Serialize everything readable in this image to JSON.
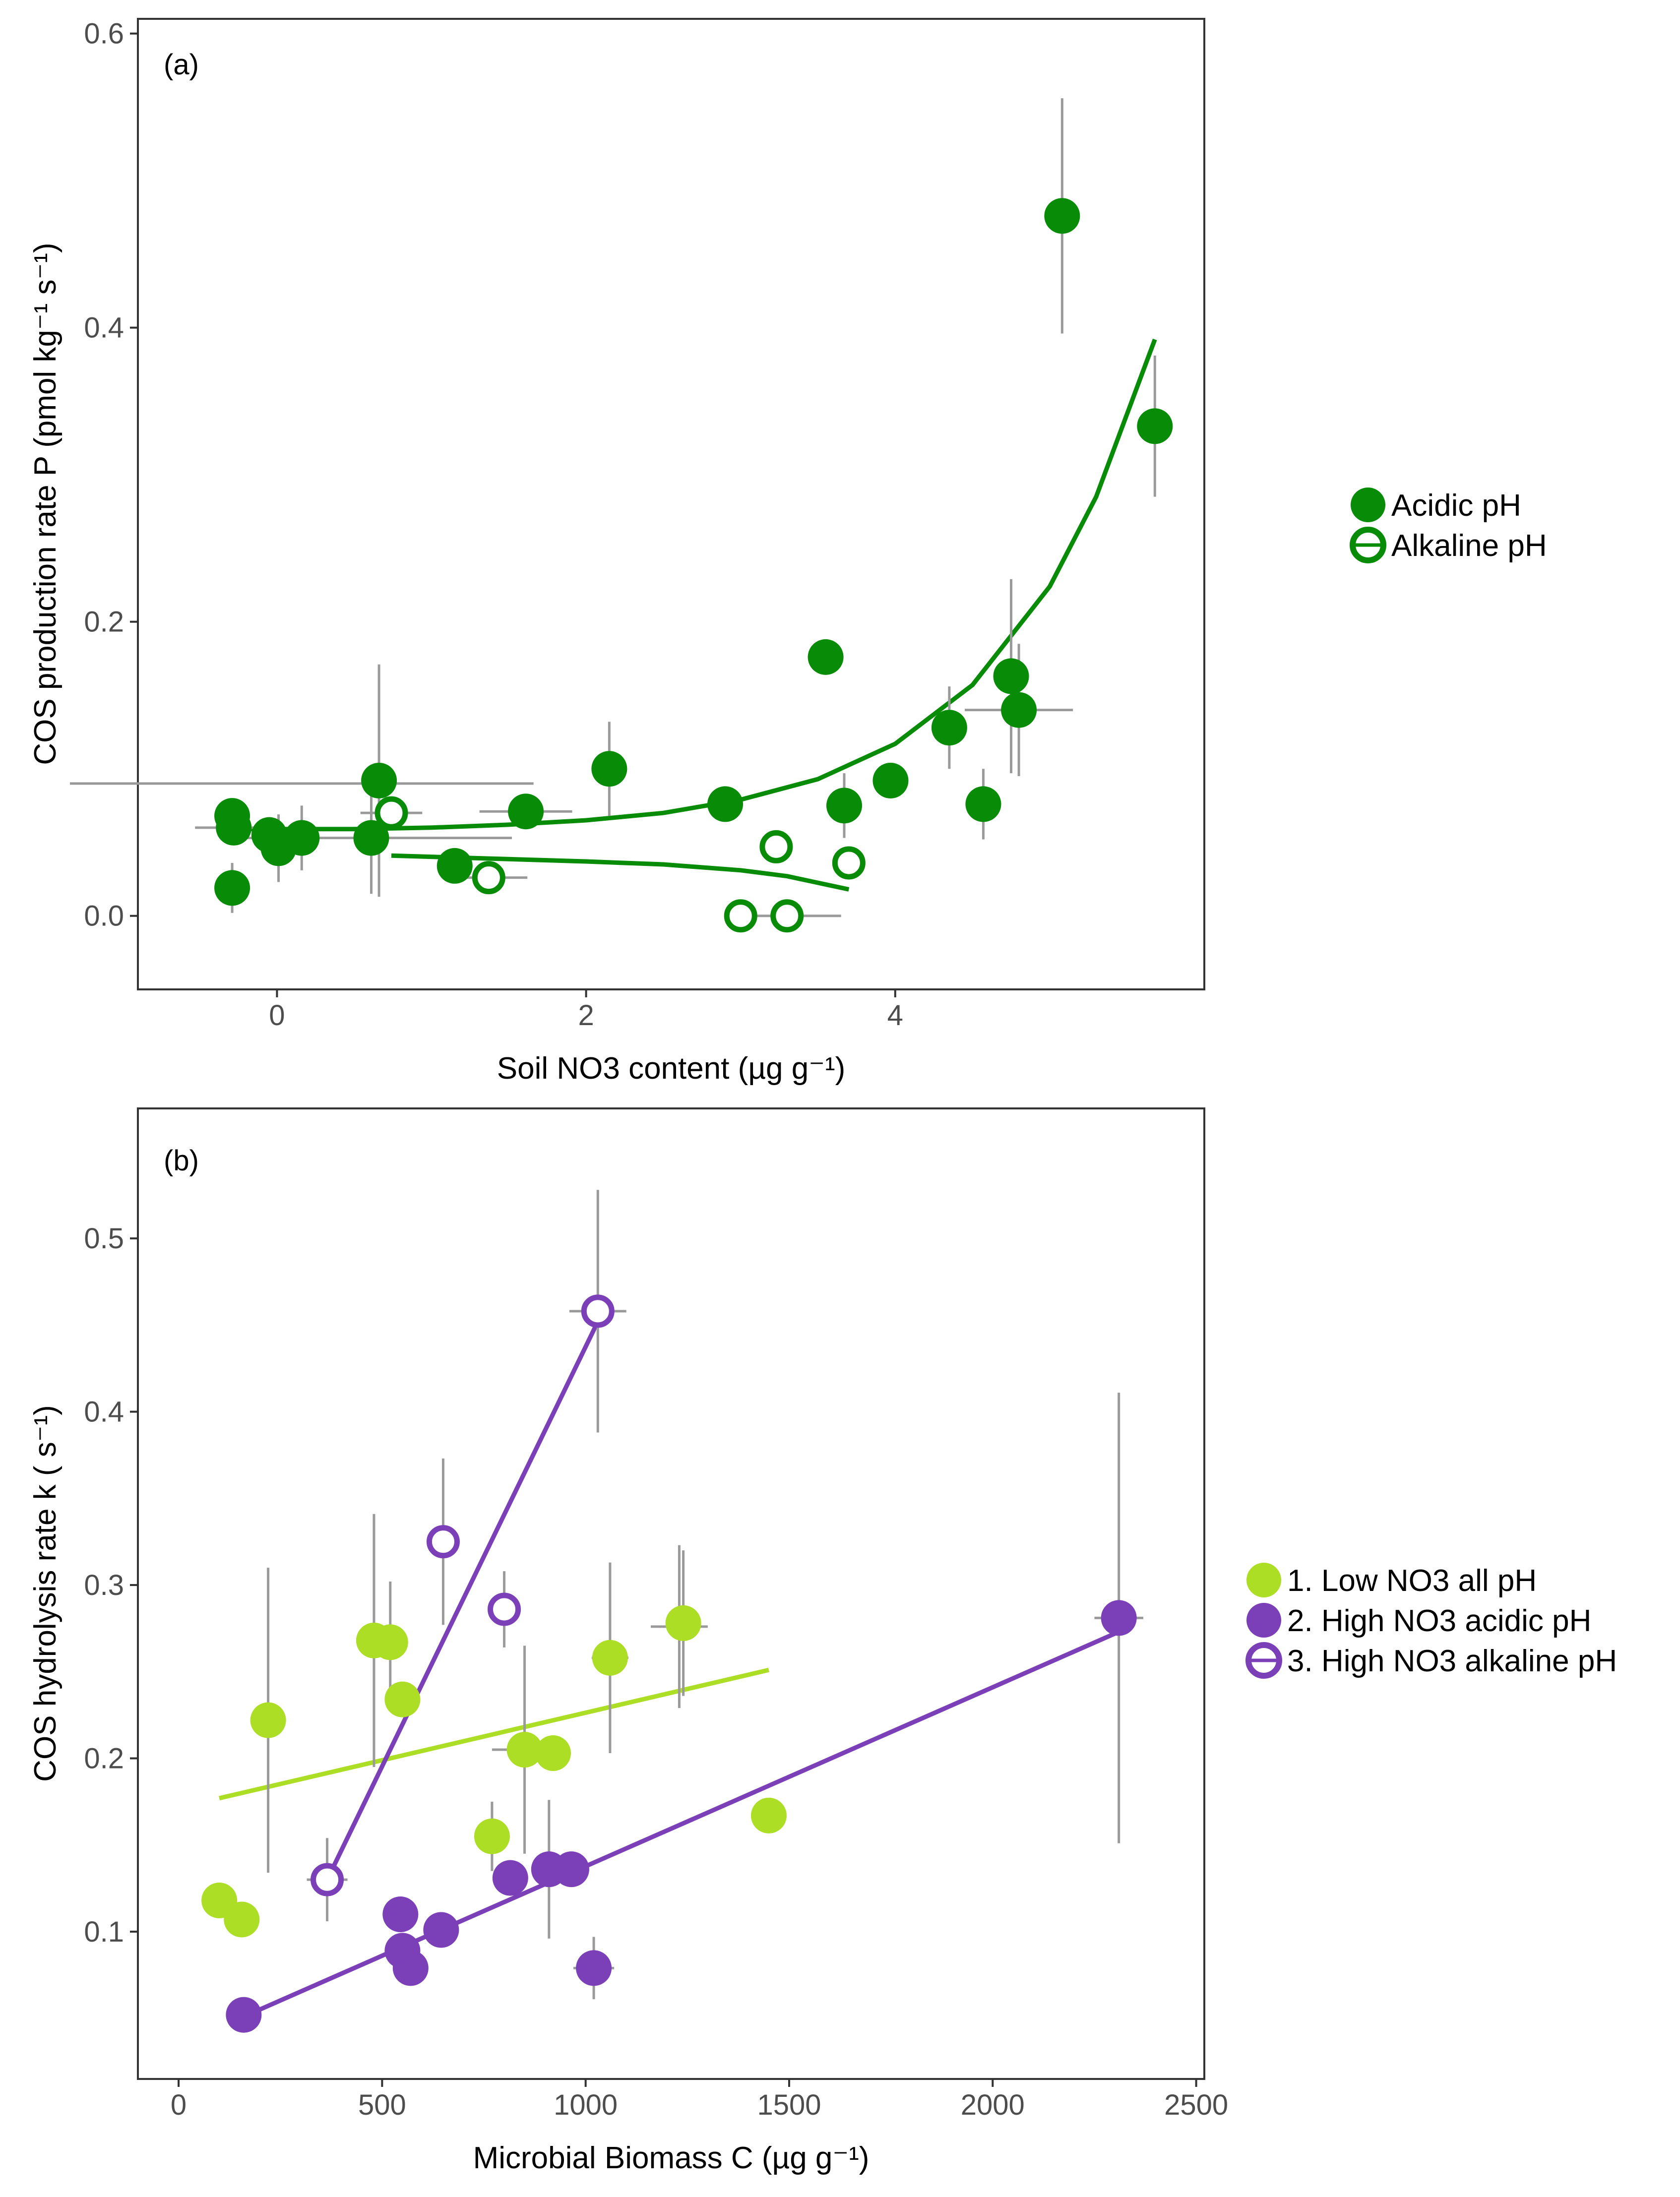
{
  "figure": {
    "panel_a": {
      "tag": "(a)",
      "xlabel": "Soil NO3 content (µg g⁻¹)",
      "ylabel": "COS production rate P (pmol kg⁻¹ s⁻¹)",
      "legend": {
        "acidic": "Acidic   pH",
        "alkaline": "Alkaline pH"
      }
    },
    "panel_b": {
      "tag": "(b)",
      "xlabel": "Microbial Biomass C (µg g⁻¹)",
      "ylabel": "COS hydrolysis rate k ( s⁻¹)",
      "legend": {
        "g1": "1. Low  NO3 all pH",
        "g2": "2. High NO3 acidic pH",
        "g3": "3. High NO3 alkaline pH"
      }
    }
  },
  "colors": {
    "acidic": "#088c08",
    "alkaline": "#088c08",
    "low_no3": "#acde26",
    "high_acidic": "#7b3fb8",
    "high_alkaline": "#7b3fb8",
    "error_bar": "#9a9a9a",
    "frame": "#333333"
  },
  "chart_data": [
    {
      "type": "scatter",
      "title": "(a)",
      "xlabel": "Soil NO3 content (µg g⁻¹)",
      "ylabel": "COS production rate P (pmol kg⁻¹ s⁻¹)",
      "xlim": [
        -0.9,
        6.0
      ],
      "ylim": [
        -0.05,
        0.61
      ],
      "xticks": [
        0,
        2,
        4
      ],
      "yticks": [
        0.0,
        0.2,
        0.4,
        0.6
      ],
      "xtick_labels": [
        "0",
        "2",
        "4"
      ],
      "ytick_labels": [
        "0.0",
        "0.2",
        "0.4",
        "0.6"
      ],
      "grid": false,
      "legend_position": "right",
      "series": [
        {
          "name": "Acidic   pH",
          "marker": "filled-circle",
          "color_key": "acidic",
          "points": [
            {
              "x": -0.29,
              "y": 0.068,
              "ex": 0.0,
              "ey": 0.0
            },
            {
              "x": -0.28,
              "y": 0.06,
              "ex": 0.25,
              "ey": 0.0
            },
            {
              "x": -0.29,
              "y": 0.019,
              "ex": 0.0,
              "ey": 0.017
            },
            {
              "x": -0.05,
              "y": 0.055,
              "ex": 0.0,
              "ey": 0.0
            },
            {
              "x": 0.01,
              "y": 0.046,
              "ex": 0.0,
              "ey": 0.023
            },
            {
              "x": 0.16,
              "y": 0.053,
              "ex": 0.0,
              "ey": 0.022
            },
            {
              "x": 0.61,
              "y": 0.053,
              "ex": 0.0,
              "ey": 0.038
            },
            {
              "x": 0.66,
              "y": 0.092,
              "ex": 0.0,
              "ey": 0.079
            },
            {
              "x": 1.15,
              "y": 0.034,
              "ex": 0.0,
              "ey": 0.0
            },
            {
              "x": 1.61,
              "y": 0.071,
              "ex": 0.3,
              "ey": 0.0
            },
            {
              "x": 2.15,
              "y": 0.1,
              "ex": 0.0,
              "ey": 0.032
            },
            {
              "x": 2.9,
              "y": 0.076,
              "ex": 0.0,
              "ey": 0.0
            },
            {
              "x": 3.55,
              "y": 0.176,
              "ex": 0.0,
              "ey": 0.0
            },
            {
              "x": 3.67,
              "y": 0.075,
              "ex": 0.0,
              "ey": 0.022
            },
            {
              "x": 3.97,
              "y": 0.092,
              "ex": 0.0,
              "ey": 0.0
            },
            {
              "x": 4.35,
              "y": 0.128,
              "ex": 0.0,
              "ey": 0.028
            },
            {
              "x": 4.57,
              "y": 0.076,
              "ex": 0.0,
              "ey": 0.024
            },
            {
              "x": 4.75,
              "y": 0.163,
              "ex": 0.0,
              "ey": 0.066
            },
            {
              "x": 4.8,
              "y": 0.14,
              "ex": 0.35,
              "ey": 0.045
            },
            {
              "x": 5.08,
              "y": 0.476,
              "ex": 0.0,
              "ey": 0.08
            },
            {
              "x": 5.68,
              "y": 0.333,
              "ex": 0.0,
              "ey": 0.048
            }
          ]
        },
        {
          "name": "Alkaline pH",
          "marker": "open-circle",
          "color_key": "alkaline",
          "points": [
            {
              "x": 0.74,
              "y": 0.07,
              "ex": 0.2,
              "ey": 0.0
            },
            {
              "x": 1.37,
              "y": 0.026,
              "ex": 0.25,
              "ey": 0.0
            },
            {
              "x": 3.0,
              "y": 0.0,
              "ex": 0.0,
              "ey": 0.0
            },
            {
              "x": 3.23,
              "y": 0.047,
              "ex": 0.0,
              "ey": 0.0
            },
            {
              "x": 3.3,
              "y": 0.0,
              "ex": 0.35,
              "ey": 0.0
            },
            {
              "x": 3.7,
              "y": 0.036,
              "ex": 0.0,
              "ey": 0.0
            }
          ]
        }
      ],
      "error_bars": [
        {
          "x": 0.16,
          "y": 0.09,
          "ex": 1.5,
          "ey": 0.0
        },
        {
          "x": 0.62,
          "y": 0.053,
          "ex": 0.9,
          "ey": 0.0
        }
      ],
      "fits": [
        {
          "name": "Acidic fit",
          "color_key": "acidic",
          "form": "exponential",
          "x": [
            -0.29,
            0.5,
            1.0,
            1.5,
            2.0,
            2.5,
            3.0,
            3.5,
            4.0,
            4.5,
            5.0,
            5.3,
            5.68
          ],
          "y": [
            0.059,
            0.059,
            0.06,
            0.062,
            0.065,
            0.07,
            0.079,
            0.093,
            0.117,
            0.157,
            0.224,
            0.285,
            0.392
          ]
        },
        {
          "name": "Alkaline fit",
          "color_key": "alkaline",
          "form": "curve",
          "x": [
            0.74,
            1.37,
            2.0,
            2.5,
            3.0,
            3.3,
            3.7
          ],
          "y": [
            0.041,
            0.039,
            0.037,
            0.035,
            0.031,
            0.027,
            0.018
          ]
        }
      ]
    },
    {
      "type": "scatter",
      "title": "(b)",
      "xlabel": "Microbial Biomass C (µg g⁻¹)",
      "ylabel": "COS hydrolysis rate k ( s⁻¹)",
      "xlim": [
        -100,
        2520
      ],
      "ylim": [
        0.015,
        0.575
      ],
      "xticks": [
        0,
        500,
        1000,
        1500,
        2000,
        2500
      ],
      "yticks": [
        0.1,
        0.2,
        0.3,
        0.4,
        0.5
      ],
      "xtick_labels": [
        "0",
        "500",
        "1000",
        "1500",
        "2000",
        "2500"
      ],
      "ytick_labels": [
        "0.1",
        "0.2",
        "0.3",
        "0.4",
        "0.5"
      ],
      "grid": false,
      "legend_position": "right",
      "series": [
        {
          "name": "1. Low  NO3 all pH",
          "marker": "filled-circle",
          "color_key": "low_no3",
          "points": [
            {
              "x": 100,
              "y": 0.118,
              "ex": 0,
              "ey": 0.0
            },
            {
              "x": 155,
              "y": 0.107,
              "ex": 0,
              "ey": 0.0
            },
            {
              "x": 220,
              "y": 0.222,
              "ex": 0,
              "ey": 0.088
            },
            {
              "x": 480,
              "y": 0.268,
              "ex": 0,
              "ey": 0.073
            },
            {
              "x": 520,
              "y": 0.267,
              "ex": 0,
              "ey": 0.035
            },
            {
              "x": 550,
              "y": 0.234,
              "ex": 0,
              "ey": 0.0
            },
            {
              "x": 770,
              "y": 0.155,
              "ex": 0,
              "ey": 0.0
            },
            {
              "x": 850,
              "y": 0.205,
              "ex": 80,
              "ey": 0.06
            },
            {
              "x": 920,
              "y": 0.203,
              "ex": 0,
              "ey": 0.0
            },
            {
              "x": 1060,
              "y": 0.258,
              "ex": 0,
              "ey": 0.055
            },
            {
              "x": 1240,
              "y": 0.278,
              "ex": 0,
              "ey": 0.042
            },
            {
              "x": 1450,
              "y": 0.167,
              "ex": 0,
              "ey": 0.0
            }
          ]
        },
        {
          "name": "2. High NO3 acidic pH",
          "marker": "filled-circle",
          "color_key": "high_acidic",
          "points": [
            {
              "x": 160,
              "y": 0.052,
              "ex": 0,
              "ey": 0.0
            },
            {
              "x": 545,
              "y": 0.11,
              "ex": 0,
              "ey": 0.0
            },
            {
              "x": 550,
              "y": 0.089,
              "ex": 0,
              "ey": 0.0
            },
            {
              "x": 570,
              "y": 0.079,
              "ex": 0,
              "ey": 0.0
            },
            {
              "x": 645,
              "y": 0.101,
              "ex": 0,
              "ey": 0.0
            },
            {
              "x": 815,
              "y": 0.131,
              "ex": 0,
              "ey": 0.0
            },
            {
              "x": 910,
              "y": 0.136,
              "ex": 0,
              "ey": 0.0
            },
            {
              "x": 965,
              "y": 0.136,
              "ex": 0,
              "ey": 0.0
            },
            {
              "x": 1020,
              "y": 0.079,
              "ex": 50,
              "ey": 0.018
            },
            {
              "x": 2310,
              "y": 0.281,
              "ex": 0,
              "ey": 0.13
            }
          ]
        },
        {
          "name": "3. High NO3 alkaline pH",
          "marker": "open-circle",
          "color_key": "high_alkaline",
          "points": [
            {
              "x": 365,
              "y": 0.13,
              "ex": 50,
              "ey": 0.024
            },
            {
              "x": 650,
              "y": 0.325,
              "ex": 0,
              "ey": 0.048
            },
            {
              "x": 800,
              "y": 0.286,
              "ex": 0,
              "ey": 0.022
            },
            {
              "x": 1030,
              "y": 0.458,
              "ex": 70,
              "ey": 0.07
            }
          ]
        }
      ],
      "error_bars": [
        {
          "x": 770,
          "y": 0.155,
          "ex": 0,
          "ey": 0.02
        },
        {
          "x": 920,
          "y": 0.203,
          "ex": 40,
          "ey": 0.0
        },
        {
          "x": 1060,
          "y": 0.258,
          "ex": 45,
          "ey": 0.0
        },
        {
          "x": 1230,
          "y": 0.276,
          "ex": 70,
          "ey": 0.047
        },
        {
          "x": 545,
          "y": 0.11,
          "ex": 40,
          "ey": 0.0
        },
        {
          "x": 570,
          "y": 0.079,
          "ex": 40,
          "ey": 0.0
        },
        {
          "x": 910,
          "y": 0.136,
          "ex": 0,
          "ey": 0.04
        },
        {
          "x": 2310,
          "y": 0.281,
          "ex": 60,
          "ey": 0.0
        },
        {
          "x": 800,
          "y": 0.286,
          "ex": 25,
          "ey": 0.0
        }
      ],
      "fits": [
        {
          "name": "Low NO3 fit",
          "color_key": "low_no3",
          "form": "linear",
          "x": [
            100,
            1450
          ],
          "y": [
            0.177,
            0.251
          ]
        },
        {
          "name": "High NO3 acidic fit",
          "color_key": "high_acidic",
          "form": "linear",
          "x": [
            160,
            2310
          ],
          "y": [
            0.051,
            0.273
          ]
        },
        {
          "name": "High NO3 alkaline fit",
          "color_key": "high_alkaline",
          "form": "linear",
          "x": [
            365,
            1030
          ],
          "y": [
            0.13,
            0.452
          ]
        }
      ]
    }
  ]
}
